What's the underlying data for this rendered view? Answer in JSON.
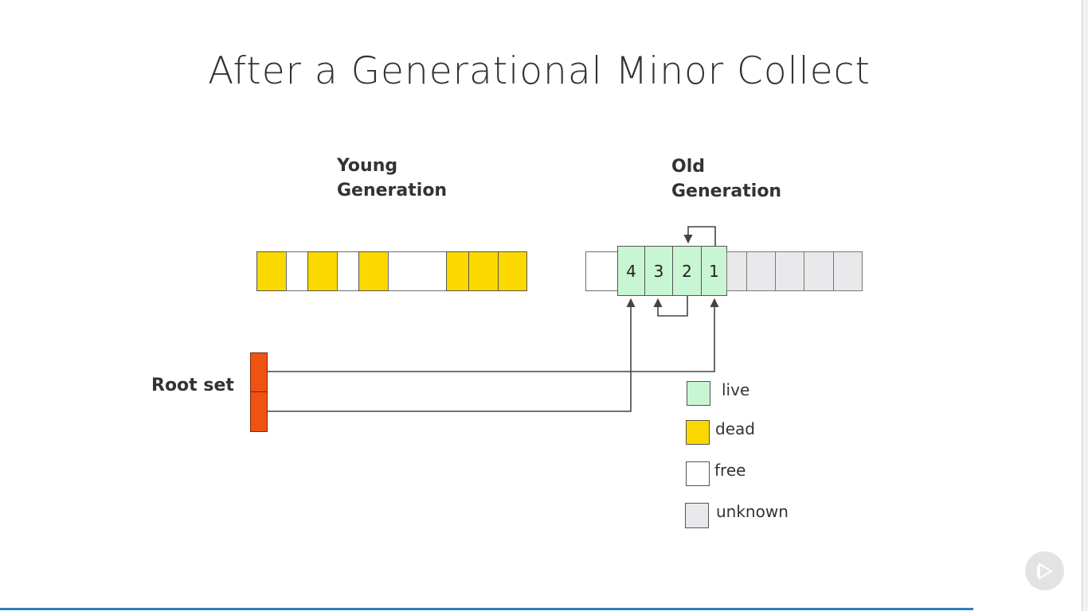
{
  "title": "After a Generational Minor Collect",
  "young_generation": {
    "label_line1": "Young",
    "label_line2": "Generation",
    "cells": [
      "dead",
      "free",
      "dead",
      "free",
      "dead",
      "free",
      "dead",
      "dead",
      "dead"
    ]
  },
  "old_generation": {
    "label_line1": "Old",
    "label_line2": "Generation",
    "cells": [
      {
        "state": "free",
        "label": ""
      },
      {
        "state": "live",
        "label": "4"
      },
      {
        "state": "live",
        "label": "3"
      },
      {
        "state": "live",
        "label": "2"
      },
      {
        "state": "live",
        "label": "1"
      },
      {
        "state": "unknown",
        "label": ""
      },
      {
        "state": "unknown",
        "label": ""
      },
      {
        "state": "unknown",
        "label": ""
      },
      {
        "state": "unknown",
        "label": ""
      },
      {
        "state": "unknown",
        "label": ""
      }
    ]
  },
  "root_set": {
    "label": "Root set"
  },
  "legend": [
    {
      "key": "live",
      "label": "live"
    },
    {
      "key": "dead",
      "label": "dead"
    },
    {
      "key": "free",
      "label": "free"
    },
    {
      "key": "unknown",
      "label": "unknown"
    }
  ],
  "colors": {
    "live": "#c8f5d2",
    "dead": "#fbd800",
    "free": "#ffffff",
    "unknown": "#e9e8ea",
    "root": "#f05214",
    "wire": "#444444",
    "progress": "#2a7fc4"
  },
  "icons": {
    "play": "play-icon"
  }
}
